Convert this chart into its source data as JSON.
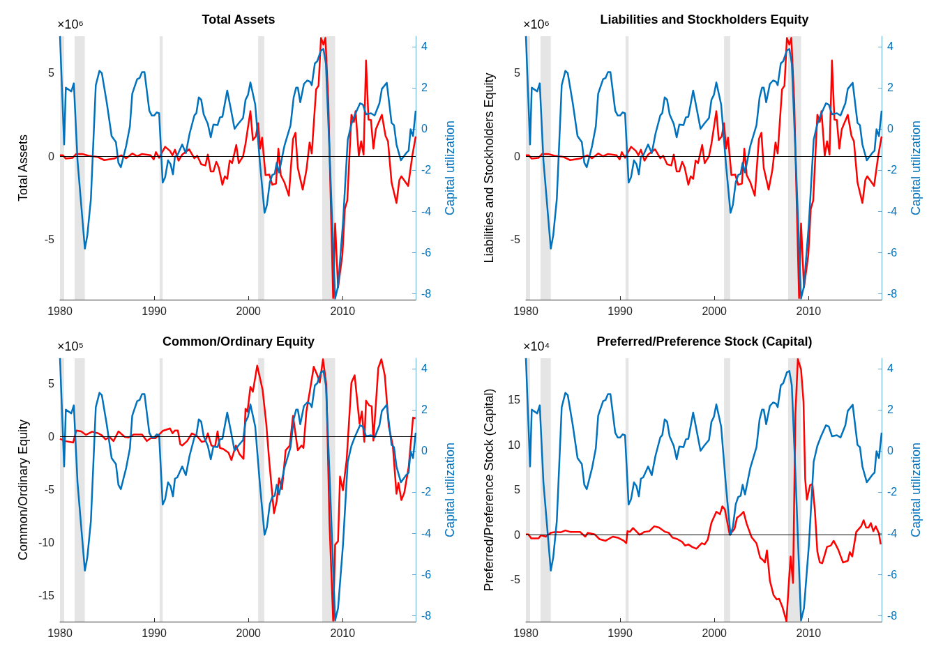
{
  "chart_data": [
    {
      "type": "line",
      "title": "Total Assets",
      "ylabel": "Total Assets",
      "y2label": "Capital utilization",
      "annotations": [
        "×10⁶"
      ],
      "xlim": [
        1980,
        2017.75
      ],
      "xticks": [
        1980,
        1990,
        2000,
        2010
      ],
      "ylim": [
        -8.6,
        7.2
      ],
      "yticks": [
        -5,
        0,
        5
      ],
      "y2lim": [
        -8.3,
        4.5
      ],
      "y2ticks": [
        -8,
        -6,
        -4,
        -2,
        0,
        2,
        4
      ],
      "bands": [
        {
          "axis": "x",
          "from": 1980.0,
          "to": 1980.44,
          "color": "#e5e5e5"
        },
        {
          "axis": "x",
          "from": 1981.55,
          "to": 1982.64,
          "color": "#e5e5e5"
        },
        {
          "axis": "x",
          "from": 1990.57,
          "to": 1990.9,
          "color": "#e5e5e5"
        },
        {
          "axis": "x",
          "from": 2001.03,
          "to": 2001.68,
          "color": "#e5e5e5"
        },
        {
          "axis": "x",
          "from": 2007.83,
          "to": 2009.2,
          "color": "#e5e5e5"
        }
      ],
      "ref_lines": [
        {
          "axis": "y",
          "value": 0,
          "color": "#000000"
        }
      ],
      "series": [
        {
          "color": "#ff0000",
          "x": [
            1980.0,
            1980.31,
            1980.62,
            1981.34,
            1981.73,
            1982.38,
            1983.02,
            1983.93,
            1984.7,
            1985.74,
            1986.51,
            1987.03,
            1987.67,
            1988.19,
            1988.71,
            1989.61,
            1989.95,
            1990.18,
            1990.52,
            1991.16,
            1991.68,
            1991.94,
            1992.2,
            1992.58,
            1992.97,
            1993.7,
            1994.26,
            1994.57,
            1994.99,
            1995.43,
            1995.69,
            1996.0,
            1996.28,
            1996.59,
            1996.85,
            1997.24,
            1997.49,
            1997.75,
            1998.01,
            1998.27,
            1998.71,
            1998.97,
            1999.43,
            1999.69,
            2000.21,
            2000.47,
            2000.78,
            2001.03,
            2001.24,
            2001.45,
            2001.81,
            2002.22,
            2002.53,
            2002.92,
            2003.18,
            2003.43,
            2003.82,
            2004.29,
            2004.73,
            2004.99,
            2005.24,
            2005.76,
            2006.15,
            2006.49,
            2006.72,
            2007.18,
            2007.44,
            2007.7,
            2007.96,
            2008.17,
            2008.48,
            2008.73,
            2008.99,
            2009.2,
            2009.51,
            2009.97,
            2010.23,
            2010.49,
            2010.93,
            2011.19,
            2011.37,
            2011.71,
            2011.96,
            2012.22,
            2012.48,
            2012.74,
            2013.0,
            2013.26,
            2013.52,
            2014.16,
            2014.55,
            2014.81,
            2015.19,
            2015.71,
            2016.02,
            2016.23,
            2016.95,
            2017.39,
            2017.75
          ],
          "values": [
            0.06,
            0.06,
            -0.14,
            -0.09,
            0.14,
            0.14,
            0.03,
            -0.03,
            -0.23,
            -0.14,
            0.06,
            -0.12,
            0.17,
            0.0,
            0.14,
            0.06,
            -0.19,
            0.25,
            -0.09,
            0.57,
            0.32,
            0.06,
            0.39,
            -0.26,
            0.1,
            0.42,
            -0.12,
            0.03,
            -0.48,
            -0.55,
            0.1,
            -0.91,
            -0.91,
            -0.33,
            -0.67,
            -1.71,
            -1.2,
            -1.35,
            -0.26,
            -0.41,
            0.68,
            -0.41,
            0.0,
            0.75,
            2.71,
            0.97,
            1.19,
            1.99,
            0.46,
            1.12,
            -1.13,
            -1.1,
            -1.71,
            -1.64,
            0.46,
            -1.13,
            -1.57,
            -2.36,
            1.04,
            1.41,
            -0.7,
            -2.0,
            -0.84,
            0.83,
            0.17,
            4.01,
            4.23,
            7.1,
            6.7,
            7.1,
            3.22,
            -2.58,
            -8.5,
            -4.03,
            -7.87,
            -5.91,
            -3.16,
            -2.65,
            2.49,
            2.06,
            2.71,
            0.03,
            0.9,
            0.1,
            5.75,
            2.2,
            2.17,
            0.46,
            1.62,
            2.49,
            1.22,
            0.9,
            -1.57,
            -2.8,
            -1.42,
            -1.2,
            -1.78,
            0.03,
            1.19
          ]
        },
        {
          "color": "#0072bd",
          "axis": "y2",
          "x": [
            1980.0,
            1980.44,
            1980.62,
            1981.2,
            1981.47,
            1981.86,
            1982.64,
            1982.9,
            1983.28,
            1983.8,
            1984.19,
            1984.44,
            1984.96,
            1985.48,
            1985.94,
            1986.2,
            1986.46,
            1987.03,
            1987.42,
            1987.67,
            1988.19,
            1988.45,
            1988.71,
            1988.97,
            1989.48,
            1989.74,
            1990.0,
            1990.26,
            1990.52,
            1990.9,
            1991.16,
            1991.47,
            1991.73,
            1991.99,
            1992.2,
            1992.45,
            1992.97,
            1993.36,
            1993.75,
            1994.26,
            1994.47,
            1994.73,
            1994.99,
            1995.25,
            1995.69,
            1996.0,
            1996.28,
            1996.72,
            1996.98,
            1997.24,
            1997.75,
            1998.09,
            1998.53,
            1998.91,
            1999.43,
            1999.69,
            1999.95,
            2000.21,
            2000.72,
            2001.24,
            2001.71,
            2001.96,
            2002.27,
            2002.53,
            2002.79,
            2003.0,
            2003.25,
            2003.82,
            2004.47,
            2004.8,
            2005.06,
            2005.24,
            2005.5,
            2005.89,
            2006.23,
            2006.54,
            2006.72,
            2007.05,
            2007.31,
            2007.7,
            2007.96,
            2008.22,
            2008.6,
            2009.2,
            2009.51,
            2010.03,
            2010.54,
            2010.93,
            2011.32,
            2011.84,
            2012.15,
            2012.48,
            2013.0,
            2013.39,
            2013.9,
            2014.16,
            2014.68,
            2015.19,
            2015.45,
            2015.71,
            2016.18,
            2016.74,
            2017.0,
            2017.21,
            2017.47,
            2017.75
          ],
          "values": [
            4.5,
            -0.76,
            2.0,
            1.82,
            2.21,
            -1.53,
            -5.82,
            -5.18,
            -3.41,
            2.12,
            2.82,
            2.71,
            1.29,
            -0.35,
            -0.65,
            -1.65,
            -1.86,
            -0.82,
            0.12,
            1.71,
            2.41,
            2.47,
            2.76,
            2.76,
            0.88,
            0.65,
            0.65,
            0.8,
            0.76,
            -2.61,
            -2.35,
            -1.53,
            -1.71,
            -2.21,
            -1.35,
            -1.29,
            -0.76,
            -1.18,
            -0.24,
            0.65,
            0.76,
            1.53,
            1.41,
            0.71,
            0.24,
            -0.41,
            0.21,
            0.18,
            0.56,
            0.59,
            1.86,
            1.06,
            0.0,
            0.24,
            0.53,
            1.41,
            1.65,
            2.26,
            1.18,
            -1.76,
            -4.08,
            -3.71,
            -2.59,
            -2.24,
            -2.18,
            -1.65,
            -2.12,
            -0.82,
            0.18,
            1.53,
            2.0,
            2.0,
            1.29,
            2.18,
            2.35,
            2.29,
            2.12,
            3.18,
            3.29,
            3.82,
            3.88,
            3.18,
            -1.06,
            -8.24,
            -7.65,
            -4.59,
            -0.53,
            0.24,
            0.71,
            1.24,
            1.18,
            0.71,
            0.76,
            0.65,
            1.24,
            1.94,
            2.24,
            0.29,
            0.18,
            -0.76,
            -1.53,
            -1.18,
            -1.06,
            -0.02,
            -0.35,
            0.88
          ]
        }
      ]
    },
    {
      "type": "line",
      "title": "Liabilities and Stockholders Equity",
      "ylabel": "Liabilities and Stockholders Equity",
      "y2label": "Capital utilization",
      "annotations": [
        "×10⁶"
      ],
      "xlim": [
        1980,
        2017.75
      ],
      "xticks": [
        1980,
        1990,
        2000,
        2010
      ],
      "ylim": [
        -8.6,
        7.2
      ],
      "yticks": [
        -5,
        0,
        5
      ],
      "y2lim": [
        -8.3,
        4.5
      ],
      "y2ticks": [
        -8,
        -6,
        -4,
        -2,
        0,
        2,
        4
      ],
      "bands": [
        {
          "axis": "x",
          "from": 1980.0,
          "to": 1980.44,
          "color": "#e5e5e5"
        },
        {
          "axis": "x",
          "from": 1981.55,
          "to": 1982.64,
          "color": "#e5e5e5"
        },
        {
          "axis": "x",
          "from": 1990.57,
          "to": 1990.9,
          "color": "#e5e5e5"
        },
        {
          "axis": "x",
          "from": 2001.03,
          "to": 2001.68,
          "color": "#e5e5e5"
        },
        {
          "axis": "x",
          "from": 2007.83,
          "to": 2009.2,
          "color": "#e5e5e5"
        }
      ],
      "ref_lines": [
        {
          "axis": "y",
          "value": 0,
          "color": "#000000"
        }
      ],
      "series": [
        {
          "color": "#ff0000",
          "x": [
            1980.0,
            1980.31,
            1980.62,
            1981.34,
            1981.73,
            1982.38,
            1983.02,
            1983.93,
            1984.7,
            1985.74,
            1986.51,
            1987.03,
            1987.67,
            1988.19,
            1988.71,
            1989.61,
            1989.95,
            1990.18,
            1990.52,
            1991.16,
            1991.68,
            1991.94,
            1992.2,
            1992.58,
            1992.97,
            1993.7,
            1994.26,
            1994.57,
            1994.99,
            1995.43,
            1995.69,
            1996.0,
            1996.28,
            1996.59,
            1996.85,
            1997.24,
            1997.49,
            1997.75,
            1998.01,
            1998.27,
            1998.71,
            1998.97,
            1999.43,
            1999.69,
            2000.21,
            2000.47,
            2000.78,
            2001.03,
            2001.24,
            2001.45,
            2001.81,
            2002.22,
            2002.53,
            2002.92,
            2003.18,
            2003.43,
            2003.82,
            2004.29,
            2004.73,
            2004.99,
            2005.24,
            2005.76,
            2006.15,
            2006.49,
            2006.72,
            2007.18,
            2007.44,
            2007.7,
            2007.96,
            2008.17,
            2008.48,
            2008.73,
            2008.99,
            2009.2,
            2009.51,
            2009.97,
            2010.23,
            2010.49,
            2010.93,
            2011.19,
            2011.37,
            2011.71,
            2011.96,
            2012.22,
            2012.48,
            2012.74,
            2013.0,
            2013.26,
            2013.52,
            2014.16,
            2014.55,
            2014.81,
            2015.19,
            2015.71,
            2016.02,
            2016.23,
            2016.95,
            2017.39,
            2017.75
          ],
          "values": [
            0.06,
            0.06,
            -0.14,
            -0.09,
            0.14,
            0.14,
            0.03,
            -0.03,
            -0.23,
            -0.14,
            0.06,
            -0.12,
            0.17,
            0.0,
            0.14,
            0.06,
            -0.19,
            0.25,
            -0.09,
            0.57,
            0.32,
            0.06,
            0.39,
            -0.26,
            0.1,
            0.42,
            -0.12,
            0.03,
            -0.48,
            -0.55,
            0.1,
            -0.91,
            -0.91,
            -0.33,
            -0.67,
            -1.71,
            -1.2,
            -1.35,
            -0.26,
            -0.41,
            0.68,
            -0.41,
            0.0,
            0.75,
            2.71,
            0.97,
            1.19,
            1.99,
            0.46,
            1.12,
            -1.13,
            -1.1,
            -1.71,
            -1.64,
            0.46,
            -1.13,
            -1.57,
            -2.36,
            1.04,
            1.41,
            -0.7,
            -2.0,
            -0.84,
            0.83,
            0.17,
            4.01,
            4.23,
            7.1,
            6.7,
            7.1,
            3.22,
            -2.58,
            -8.5,
            -4.03,
            -7.87,
            -5.91,
            -3.16,
            -2.65,
            2.49,
            2.06,
            2.71,
            0.03,
            0.9,
            0.1,
            5.75,
            2.2,
            2.17,
            0.46,
            1.62,
            2.49,
            1.22,
            0.9,
            -1.57,
            -2.8,
            -1.42,
            -1.2,
            -1.78,
            0.03,
            1.19
          ]
        },
        {
          "color": "#0072bd",
          "axis": "y2",
          "x": [
            1980.0,
            1980.44,
            1980.62,
            1981.2,
            1981.47,
            1981.86,
            1982.64,
            1982.9,
            1983.28,
            1983.8,
            1984.19,
            1984.44,
            1984.96,
            1985.48,
            1985.94,
            1986.2,
            1986.46,
            1987.03,
            1987.42,
            1987.67,
            1988.19,
            1988.45,
            1988.71,
            1988.97,
            1989.48,
            1989.74,
            1990.0,
            1990.26,
            1990.52,
            1990.9,
            1991.16,
            1991.47,
            1991.73,
            1991.99,
            1992.2,
            1992.45,
            1992.97,
            1993.36,
            1993.75,
            1994.26,
            1994.47,
            1994.73,
            1994.99,
            1995.25,
            1995.69,
            1996.0,
            1996.28,
            1996.72,
            1996.98,
            1997.24,
            1997.75,
            1998.09,
            1998.53,
            1998.91,
            1999.43,
            1999.69,
            1999.95,
            2000.21,
            2000.72,
            2001.24,
            2001.71,
            2001.96,
            2002.27,
            2002.53,
            2002.79,
            2003.0,
            2003.25,
            2003.82,
            2004.47,
            2004.8,
            2005.06,
            2005.24,
            2005.5,
            2005.89,
            2006.23,
            2006.54,
            2006.72,
            2007.05,
            2007.31,
            2007.7,
            2007.96,
            2008.22,
            2008.6,
            2009.2,
            2009.51,
            2010.03,
            2010.54,
            2010.93,
            2011.32,
            2011.84,
            2012.15,
            2012.48,
            2013.0,
            2013.39,
            2013.9,
            2014.16,
            2014.68,
            2015.19,
            2015.45,
            2015.71,
            2016.18,
            2016.74,
            2017.0,
            2017.21,
            2017.47,
            2017.75
          ],
          "values": [
            4.5,
            -0.76,
            2.0,
            1.82,
            2.21,
            -1.53,
            -5.82,
            -5.18,
            -3.41,
            2.12,
            2.82,
            2.71,
            1.29,
            -0.35,
            -0.65,
            -1.65,
            -1.86,
            -0.82,
            0.12,
            1.71,
            2.41,
            2.47,
            2.76,
            2.76,
            0.88,
            0.65,
            0.65,
            0.8,
            0.76,
            -2.61,
            -2.35,
            -1.53,
            -1.71,
            -2.21,
            -1.35,
            -1.29,
            -0.76,
            -1.18,
            -0.24,
            0.65,
            0.76,
            1.53,
            1.41,
            0.71,
            0.24,
            -0.41,
            0.21,
            0.18,
            0.56,
            0.59,
            1.86,
            1.06,
            0.0,
            0.24,
            0.53,
            1.41,
            1.65,
            2.26,
            1.18,
            -1.76,
            -4.08,
            -3.71,
            -2.59,
            -2.24,
            -2.18,
            -1.65,
            -2.12,
            -0.82,
            0.18,
            1.53,
            2.0,
            2.0,
            1.29,
            2.18,
            2.35,
            2.29,
            2.12,
            3.18,
            3.29,
            3.82,
            3.88,
            3.18,
            -1.06,
            -8.24,
            -7.65,
            -4.59,
            -0.53,
            0.24,
            0.71,
            1.24,
            1.18,
            0.71,
            0.76,
            0.65,
            1.24,
            1.94,
            2.24,
            0.29,
            0.18,
            -0.76,
            -1.53,
            -1.18,
            -1.06,
            -0.02,
            -0.35,
            0.88
          ]
        }
      ]
    },
    {
      "type": "line",
      "title": "Common/Ordinary Equity",
      "ylabel": "Common/Ordinary Equity",
      "y2label": "Capital utilization",
      "annotations": [
        "×10⁵"
      ],
      "xlim": [
        1980,
        2017.75
      ],
      "xticks": [
        1980,
        1990,
        2000,
        2010
      ],
      "ylim": [
        -17.5,
        7.4
      ],
      "yticks": [
        -15,
        -10,
        -5,
        0,
        5
      ],
      "y2lim": [
        -8.3,
        4.5
      ],
      "y2ticks": [
        -8,
        -6,
        -4,
        -2,
        0,
        2,
        4
      ],
      "bands": [
        {
          "axis": "x",
          "from": 1980.0,
          "to": 1980.44,
          "color": "#e5e5e5"
        },
        {
          "axis": "x",
          "from": 1981.55,
          "to": 1982.64,
          "color": "#e5e5e5"
        },
        {
          "axis": "x",
          "from": 1990.57,
          "to": 1990.9,
          "color": "#e5e5e5"
        },
        {
          "axis": "x",
          "from": 2001.03,
          "to": 2001.68,
          "color": "#e5e5e5"
        },
        {
          "axis": "x",
          "from": 2007.83,
          "to": 2009.2,
          "color": "#e5e5e5"
        }
      ],
      "ref_lines": [
        {
          "axis": "y",
          "value": 0,
          "color": "#000000"
        }
      ],
      "series": [
        {
          "color": "#ff0000",
          "x": [
            1980.0,
            1980.57,
            1981.4,
            1981.73,
            1982.25,
            1982.76,
            1983.41,
            1984.06,
            1984.44,
            1984.83,
            1985.27,
            1985.68,
            1986.2,
            1986.9,
            1987.29,
            1987.8,
            1988.71,
            1989.22,
            1989.61,
            1990.13,
            1990.9,
            1991.68,
            1991.94,
            1992.2,
            1992.51,
            1992.77,
            1992.97,
            1993.49,
            1994.0,
            1994.52,
            1995.04,
            1995.43,
            1995.69,
            1996.07,
            1996.46,
            1996.72,
            1996.98,
            1997.36,
            1997.88,
            1998.19,
            1998.66,
            1999.04,
            1999.48,
            1999.69,
            1999.9,
            2000.21,
            2000.47,
            2000.93,
            2001.5,
            2001.89,
            2002.22,
            2002.71,
            2003.0,
            2003.25,
            2003.56,
            2003.95,
            2004.39,
            2004.73,
            2005.24,
            2005.63,
            2005.84,
            2006.15,
            2006.54,
            2006.93,
            2007.31,
            2007.57,
            2007.91,
            2008.27,
            2008.6,
            2008.99,
            2009.2,
            2009.51,
            2009.72,
            2010.03,
            2010.42,
            2010.93,
            2011.27,
            2011.79,
            2012.04,
            2012.3,
            2012.48,
            2012.82,
            2013.08,
            2013.26,
            2013.78,
            2014.11,
            2014.47,
            2014.89,
            2015.32,
            2015.71,
            2015.92,
            2016.23,
            2016.54,
            2017.0,
            2017.47,
            2017.73
          ],
          "values": [
            -0.21,
            -0.43,
            -0.57,
            0.57,
            0.48,
            0.16,
            0.46,
            0.3,
            0.11,
            -0.27,
            -0.05,
            -0.43,
            0.48,
            -0.05,
            -0.09,
            0.18,
            0.18,
            -0.43,
            -0.16,
            -0.16,
            0.53,
            0.76,
            0.3,
            0.57,
            0.57,
            -0.73,
            -0.85,
            -0.43,
            0.3,
            0.07,
            -0.5,
            -0.43,
            0.3,
            -0.85,
            -0.96,
            0.48,
            -1.08,
            -1.19,
            -1.53,
            -2.22,
            -0.85,
            -1.65,
            -2.11,
            2.63,
            2.36,
            4.69,
            4.23,
            6.7,
            4.42,
            1.21,
            -2.45,
            -7.25,
            -6.11,
            -3.94,
            -4.97,
            -1.3,
            -0.85,
            1.95,
            -1.3,
            -0.85,
            -1.08,
            2.36,
            4.42,
            6.59,
            5.79,
            5.1,
            7.3,
            4.87,
            -8.17,
            -17.4,
            -10.23,
            -9.89,
            -3.78,
            -5.08,
            -2.22,
            5.1,
            5.79,
            1.21,
            2.36,
            -0.5,
            3.39,
            2.93,
            2.86,
            -0.39,
            6.48,
            7.3,
            5.79,
            0.98,
            -0.85,
            -5.42,
            -4.39,
            -6.0,
            -5.31,
            -2.91,
            1.78,
            1.72
          ]
        },
        {
          "color": "#0072bd",
          "axis": "y2",
          "x": [
            1980.0,
            1980.44,
            1980.62,
            1981.2,
            1981.47,
            1981.86,
            1982.64,
            1982.9,
            1983.28,
            1983.8,
            1984.19,
            1984.44,
            1984.96,
            1985.48,
            1985.94,
            1986.2,
            1986.46,
            1987.03,
            1987.42,
            1987.67,
            1988.19,
            1988.45,
            1988.71,
            1988.97,
            1989.48,
            1989.74,
            1990.0,
            1990.26,
            1990.52,
            1990.9,
            1991.16,
            1991.47,
            1991.73,
            1991.99,
            1992.2,
            1992.45,
            1992.97,
            1993.36,
            1993.75,
            1994.26,
            1994.47,
            1994.73,
            1994.99,
            1995.25,
            1995.69,
            1996.0,
            1996.28,
            1996.72,
            1996.98,
            1997.24,
            1997.75,
            1998.09,
            1998.53,
            1998.91,
            1999.43,
            1999.69,
            1999.95,
            2000.21,
            2000.72,
            2001.24,
            2001.71,
            2001.96,
            2002.27,
            2002.53,
            2002.79,
            2003.0,
            2003.25,
            2003.82,
            2004.47,
            2004.8,
            2005.06,
            2005.24,
            2005.5,
            2005.89,
            2006.23,
            2006.54,
            2006.72,
            2007.05,
            2007.31,
            2007.7,
            2007.96,
            2008.22,
            2008.6,
            2009.2,
            2009.51,
            2010.03,
            2010.54,
            2010.93,
            2011.32,
            2011.84,
            2012.15,
            2012.48,
            2013.0,
            2013.39,
            2013.9,
            2014.16,
            2014.68,
            2015.19,
            2015.45,
            2015.71,
            2016.18,
            2016.74,
            2017.0,
            2017.21,
            2017.47,
            2017.75
          ],
          "values": [
            4.5,
            -0.76,
            2.0,
            1.82,
            2.21,
            -1.53,
            -5.82,
            -5.18,
            -3.41,
            2.12,
            2.82,
            2.71,
            1.29,
            -0.35,
            -0.65,
            -1.65,
            -1.86,
            -0.82,
            0.12,
            1.71,
            2.41,
            2.47,
            2.76,
            2.76,
            0.88,
            0.65,
            0.65,
            0.8,
            0.76,
            -2.61,
            -2.35,
            -1.53,
            -1.71,
            -2.21,
            -1.35,
            -1.29,
            -0.76,
            -1.18,
            -0.24,
            0.65,
            0.76,
            1.53,
            1.41,
            0.71,
            0.24,
            -0.41,
            0.21,
            0.18,
            0.56,
            0.59,
            1.86,
            1.06,
            0.0,
            0.24,
            0.53,
            1.41,
            1.65,
            2.26,
            1.18,
            -1.76,
            -4.08,
            -3.71,
            -2.59,
            -2.24,
            -2.18,
            -1.65,
            -2.12,
            -0.82,
            0.18,
            1.53,
            2.0,
            2.0,
            1.29,
            2.18,
            2.35,
            2.29,
            2.12,
            3.18,
            3.29,
            3.82,
            3.88,
            3.18,
            -1.06,
            -8.24,
            -7.65,
            -4.59,
            -0.53,
            0.24,
            0.71,
            1.24,
            1.18,
            0.71,
            0.76,
            0.65,
            1.24,
            1.94,
            2.24,
            0.29,
            0.18,
            -0.76,
            -1.53,
            -1.18,
            -1.06,
            -0.02,
            -0.35,
            0.88
          ]
        }
      ]
    },
    {
      "type": "line",
      "title": "Preferred/Preference Stock (Capital)",
      "ylabel": "Preferred/Preference Stock (Capital)",
      "y2label": "Capital utilization",
      "annotations": [
        "×10⁴"
      ],
      "xlim": [
        1980,
        2017.75
      ],
      "xticks": [
        1980,
        1990,
        2000,
        2010
      ],
      "ylim": [
        -9.65,
        19.6
      ],
      "yticks": [
        -5,
        0,
        5,
        10,
        15
      ],
      "y2lim": [
        -8.3,
        4.5
      ],
      "y2ticks": [
        -8,
        -6,
        -4,
        -2,
        0,
        2,
        4
      ],
      "bands": [
        {
          "axis": "x",
          "from": 1980.0,
          "to": 1980.44,
          "color": "#e5e5e5"
        },
        {
          "axis": "x",
          "from": 1981.55,
          "to": 1982.64,
          "color": "#e5e5e5"
        },
        {
          "axis": "x",
          "from": 1990.57,
          "to": 1990.9,
          "color": "#e5e5e5"
        },
        {
          "axis": "x",
          "from": 2001.03,
          "to": 2001.68,
          "color": "#e5e5e5"
        },
        {
          "axis": "x",
          "from": 2007.83,
          "to": 2009.2,
          "color": "#e5e5e5"
        }
      ],
      "ref_lines": [
        {
          "axis": "y",
          "value": 0,
          "color": "#000000"
        }
      ],
      "series": [
        {
          "color": "#ff0000",
          "x": [
            1980.0,
            1980.26,
            1980.57,
            1981.34,
            1981.6,
            1982.12,
            1982.64,
            1983.15,
            1983.67,
            1984.19,
            1984.7,
            1985.74,
            1986.3,
            1986.56,
            1987.29,
            1987.8,
            1988.45,
            1989.22,
            1989.74,
            1990.39,
            1990.65,
            1990.78,
            1991.03,
            1991.37,
            1992.07,
            1992.58,
            1993.1,
            1993.62,
            1994.13,
            1994.78,
            1995.17,
            1995.56,
            1996.07,
            1996.59,
            1996.9,
            1997.24,
            1997.62,
            1998.09,
            1998.66,
            1998.97,
            1999.3,
            1999.69,
            2000.21,
            2000.59,
            2000.85,
            2001.11,
            2001.63,
            2002.14,
            2002.4,
            2002.79,
            2003.1,
            2003.43,
            2003.95,
            2004.47,
            2004.86,
            2005.17,
            2005.37,
            2005.58,
            2005.89,
            2006.28,
            2006.61,
            2006.87,
            2007.23,
            2007.65,
            2007.91,
            2008.09,
            2008.35,
            2008.6,
            2008.86,
            2009.2,
            2009.46,
            2009.64,
            2009.82,
            2010.16,
            2010.41,
            2010.67,
            2010.93,
            2011.19,
            2011.45,
            2011.96,
            2012.35,
            2012.66,
            2013.13,
            2013.65,
            2014.16,
            2014.37,
            2014.63,
            2015.06,
            2015.58,
            2015.84,
            2016.1,
            2016.36,
            2016.61,
            2016.87,
            2017.13,
            2017.47,
            2017.65
          ],
          "values": [
            0.05,
            0.05,
            -0.4,
            -0.4,
            -0.05,
            -0.21,
            0.21,
            0.32,
            0.27,
            0.48,
            0.32,
            0.32,
            -0.21,
            0.21,
            0.05,
            -0.48,
            -0.67,
            -0.21,
            -0.32,
            -0.67,
            -0.94,
            0.4,
            0.32,
            0.75,
            0.0,
            0.32,
            0.4,
            0.94,
            0.8,
            0.32,
            0.21,
            -0.32,
            -0.48,
            -0.8,
            -1.21,
            -1.07,
            -1.34,
            -1.55,
            -0.94,
            -1.07,
            -0.54,
            1.34,
            2.55,
            2.28,
            3.16,
            2.82,
            0.0,
            0.67,
            1.88,
            2.2,
            2.55,
            1.21,
            -0.27,
            -0.94,
            -2.55,
            -2.82,
            -3.08,
            -1.74,
            -5.09,
            -6.7,
            -7.18,
            -7.1,
            -8.04,
            -9.6,
            -5.23,
            -2.41,
            -5.36,
            13.4,
            19.5,
            18.36,
            14.75,
            6.17,
            3.89,
            5.5,
            5.63,
            2.68,
            -1.88,
            -3.08,
            -3.16,
            -1.34,
            -1.21,
            -0.67,
            -1.61,
            -3.08,
            -2.9,
            -1.93,
            -2.41,
            0.32,
            0.94,
            1.61,
            0.8,
            0.8,
            1.29,
            0.4,
            0.94,
            0.13,
            -1.07
          ]
        },
        {
          "color": "#0072bd",
          "axis": "y2",
          "x": [
            1980.0,
            1980.44,
            1980.62,
            1981.2,
            1981.47,
            1981.86,
            1982.64,
            1982.9,
            1983.28,
            1983.8,
            1984.19,
            1984.44,
            1984.96,
            1985.48,
            1985.94,
            1986.2,
            1986.46,
            1987.03,
            1987.42,
            1987.67,
            1988.19,
            1988.45,
            1988.71,
            1988.97,
            1989.48,
            1989.74,
            1990.0,
            1990.26,
            1990.52,
            1990.9,
            1991.16,
            1991.47,
            1991.73,
            1991.99,
            1992.2,
            1992.45,
            1992.97,
            1993.36,
            1993.75,
            1994.26,
            1994.47,
            1994.73,
            1994.99,
            1995.25,
            1995.69,
            1996.0,
            1996.28,
            1996.72,
            1996.98,
            1997.24,
            1997.75,
            1998.09,
            1998.53,
            1998.91,
            1999.43,
            1999.69,
            1999.95,
            2000.21,
            2000.72,
            2001.24,
            2001.71,
            2001.96,
            2002.27,
            2002.53,
            2002.79,
            2003.0,
            2003.25,
            2003.82,
            2004.47,
            2004.8,
            2005.06,
            2005.24,
            2005.5,
            2005.89,
            2006.23,
            2006.54,
            2006.72,
            2007.05,
            2007.31,
            2007.7,
            2007.96,
            2008.22,
            2008.6,
            2009.2,
            2009.51,
            2010.03,
            2010.54,
            2010.93,
            2011.32,
            2011.84,
            2012.15,
            2012.48,
            2013.0,
            2013.39,
            2013.9,
            2014.16,
            2014.68,
            2015.19,
            2015.45,
            2015.71,
            2016.18,
            2016.74,
            2017.0,
            2017.21,
            2017.47,
            2017.75
          ],
          "values": [
            4.5,
            -0.76,
            2.0,
            1.82,
            2.21,
            -1.53,
            -5.82,
            -5.18,
            -3.41,
            2.12,
            2.82,
            2.71,
            1.29,
            -0.35,
            -0.65,
            -1.65,
            -1.86,
            -0.82,
            0.12,
            1.71,
            2.41,
            2.47,
            2.76,
            2.76,
            0.88,
            0.65,
            0.65,
            0.8,
            0.76,
            -2.61,
            -2.35,
            -1.53,
            -1.71,
            -2.21,
            -1.35,
            -1.29,
            -0.76,
            -1.18,
            -0.24,
            0.65,
            0.76,
            1.53,
            1.41,
            0.71,
            0.24,
            -0.41,
            0.21,
            0.18,
            0.56,
            0.59,
            1.86,
            1.06,
            0.0,
            0.24,
            0.53,
            1.41,
            1.65,
            2.26,
            1.18,
            -1.76,
            -4.08,
            -3.71,
            -2.59,
            -2.24,
            -2.18,
            -1.65,
            -2.12,
            -0.82,
            0.18,
            1.53,
            2.0,
            2.0,
            1.29,
            2.18,
            2.35,
            2.29,
            2.12,
            3.18,
            3.29,
            3.82,
            3.88,
            3.18,
            -1.06,
            -8.24,
            -7.65,
            -4.59,
            -0.53,
            0.24,
            0.71,
            1.24,
            1.18,
            0.71,
            0.76,
            0.65,
            1.24,
            1.94,
            2.24,
            0.29,
            0.18,
            -0.76,
            -1.53,
            -1.18,
            -1.06,
            -0.02,
            -0.35,
            0.88
          ]
        }
      ]
    }
  ]
}
